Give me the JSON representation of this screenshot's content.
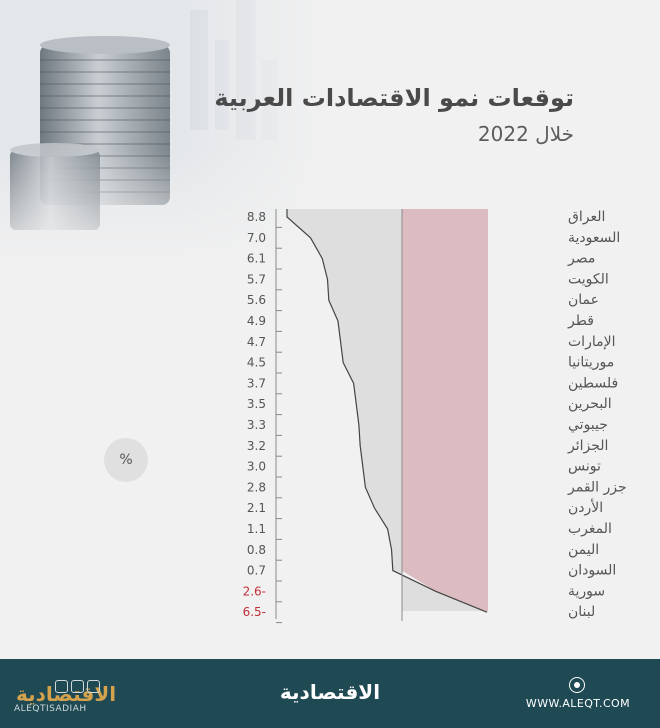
{
  "header": {
    "title": "توقعات نمو الاقتصادات العربية",
    "subtitle": "خلال 2022"
  },
  "unit_badge": "%",
  "footer": {
    "brand_left": "الاقتصادية",
    "brand_left_sub": "ALEQTISADIAH",
    "brand_center": "الاقتصادية",
    "website": "WWW.ALEQT.COM"
  },
  "colors": {
    "positive_area": "#dedede",
    "negative_area": "#dcbcc0",
    "line": "#444444",
    "negative_label": "#c0303a",
    "footer_bg": "#1f4a54"
  },
  "chart_data": {
    "type": "area",
    "orientation": "horizontal",
    "title": "توقعات نمو الاقتصادات العربية",
    "subtitle": "خلال 2022",
    "unit": "%",
    "categories": [
      "العراق",
      "السعودية",
      "مصر",
      "الكويت",
      "عمان",
      "قطر",
      "الإمارات",
      "موريتانيا",
      "فلسطين",
      "البحرين",
      "جيبوتي",
      "الجزائر",
      "تونس",
      "جزر القمر",
      "الأردن",
      "المغرب",
      "اليمن",
      "السودان",
      "سورية",
      "لبنان"
    ],
    "value_labels": [
      "8.8",
      "7.0",
      "6.1",
      "5.7",
      "5.6",
      "4.9",
      "4.7",
      "4.5",
      "3.7",
      "3.5",
      "3.3",
      "3.2",
      "3.0",
      "2.8",
      "2.1",
      "1.1",
      "0.8",
      "0.7",
      "2.6-",
      "6.5-"
    ],
    "values": [
      8.8,
      7.0,
      6.1,
      5.7,
      5.6,
      4.9,
      4.7,
      4.5,
      3.7,
      3.5,
      3.3,
      3.2,
      3.0,
      2.8,
      2.1,
      1.1,
      0.8,
      0.7,
      -2.6,
      -6.5
    ],
    "xlim": [
      -6.5,
      8.8
    ]
  }
}
